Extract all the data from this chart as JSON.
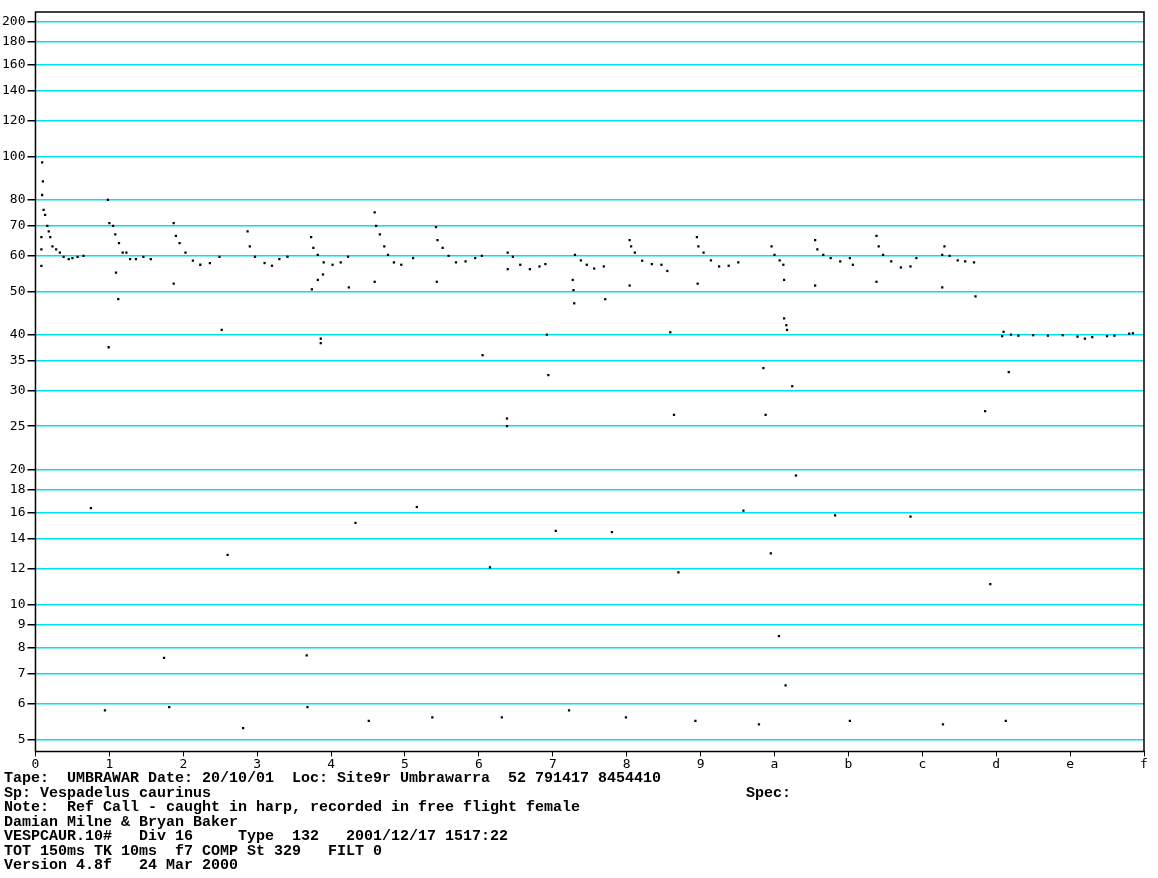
{
  "chart_data": {
    "type": "scatter",
    "color": "#000000",
    "marker": "square",
    "grid": "y",
    "legend": false,
    "log": "y",
    "xlim": [
      0,
      15
    ],
    "xticks": [
      {
        "value": 0,
        "label": "0"
      },
      {
        "value": 1,
        "label": "1"
      },
      {
        "value": 2,
        "label": "2"
      },
      {
        "value": 3,
        "label": "3"
      },
      {
        "value": 4,
        "label": "4"
      },
      {
        "value": 5,
        "label": "5"
      },
      {
        "value": 6,
        "label": "6"
      },
      {
        "value": 7,
        "label": "7"
      },
      {
        "value": 8,
        "label": "8"
      },
      {
        "value": 9,
        "label": "9"
      },
      {
        "value": 10,
        "label": "a"
      },
      {
        "value": 11,
        "label": "b"
      },
      {
        "value": 12,
        "label": "c"
      },
      {
        "value": 13,
        "label": "d"
      },
      {
        "value": 14,
        "label": "e"
      },
      {
        "value": 15,
        "label": "f"
      }
    ],
    "ylim": [
      4.7,
      210
    ],
    "yticks": [
      5,
      6,
      7,
      8,
      9,
      10,
      12,
      14,
      16,
      18,
      20,
      25,
      30,
      35,
      40,
      50,
      60,
      70,
      80,
      100,
      120,
      140,
      160,
      180,
      200
    ],
    "x": [
      0.08,
      0.08,
      0.08,
      0.09,
      0.1,
      0.09,
      0.11,
      0.13,
      0.16,
      0.18,
      0.2,
      0.23,
      0.28,
      0.33,
      0.38,
      0.45,
      0.5,
      0.57,
      0.65,
      0.98,
      1.0,
      1.05,
      1.08,
      1.13,
      1.18,
      1.23,
      1.28,
      1.36,
      1.46,
      1.56,
      1.09,
      1.12,
      0.99,
      1.87,
      1.9,
      1.95,
      2.03,
      2.13,
      2.23,
      2.36,
      2.49,
      1.87,
      2.52,
      2.87,
      2.9,
      2.97,
      3.1,
      3.2,
      3.3,
      3.41,
      3.73,
      3.76,
      3.82,
      3.9,
      4.02,
      4.13,
      4.23,
      3.74,
      3.82,
      3.89,
      3.86,
      3.86,
      4.24,
      4.59,
      4.61,
      4.66,
      4.72,
      4.77,
      4.85,
      4.95,
      5.11,
      4.59,
      5.42,
      5.44,
      5.51,
      5.59,
      5.69,
      5.82,
      5.95,
      6.04,
      5.43,
      6.05,
      6.39,
      6.46,
      6.56,
      6.69,
      6.82,
      6.9,
      6.39,
      6.92,
      6.38,
      6.38,
      7.3,
      7.38,
      7.46,
      7.56,
      7.69,
      7.27,
      7.28,
      7.29,
      7.71,
      6.94,
      8.04,
      8.06,
      8.11,
      8.21,
      8.34,
      8.47,
      8.55,
      8.04,
      8.59,
      8.95,
      8.97,
      9.04,
      9.14,
      9.25,
      9.38,
      9.51,
      8.96,
      9.96,
      10.0,
      10.07,
      10.12,
      10.13,
      10.13,
      10.16,
      10.17,
      10.55,
      10.58,
      10.66,
      10.76,
      10.89,
      11.02,
      11.06,
      10.55,
      11.38,
      11.41,
      11.47,
      11.58,
      11.71,
      11.84,
      11.92,
      11.38,
      12.3,
      12.27,
      12.37,
      12.48,
      12.58,
      12.7,
      12.27,
      12.72,
      13.08,
      13.1,
      13.2,
      13.3,
      13.5,
      13.7,
      13.9,
      14.1,
      14.2,
      14.3,
      14.5,
      14.6,
      14.8,
      14.85,
      0.75,
      0.94,
      1.81,
      1.74,
      2.6,
      2.81,
      3.67,
      3.68,
      4.33,
      4.51,
      5.16,
      5.37,
      6.15,
      6.31,
      7.04,
      7.22,
      7.8,
      7.99,
      8.7,
      8.64,
      8.93,
      9.58,
      9.79,
      9.85,
      9.88,
      9.95,
      10.24,
      10.29,
      10.06,
      10.15,
      11.02,
      10.82,
      11.84,
      12.28,
      12.85,
      12.92,
      13.13,
      13.17
    ],
    "values": [
      57,
      62,
      66,
      82,
      88,
      97,
      76,
      74,
      70,
      68,
      66,
      63,
      62,
      61,
      59.7,
      59,
      59.3,
      59.7,
      60,
      80,
      71,
      70,
      67,
      64,
      61,
      61,
      59,
      59,
      59.7,
      59,
      55,
      48,
      37.5,
      71,
      66.5,
      64,
      61,
      58.5,
      57.3,
      57.8,
      59.7,
      52,
      41,
      68,
      63,
      59.7,
      57.8,
      57,
      59,
      59.7,
      66,
      62.5,
      60.3,
      58,
      57.3,
      58,
      59.7,
      50.5,
      53,
      54.5,
      39.2,
      38.3,
      51,
      75,
      70,
      67,
      63,
      60.3,
      58,
      57.3,
      59.3,
      52.5,
      69.5,
      65,
      62.5,
      60,
      58,
      58.3,
      59.3,
      60,
      52.5,
      36,
      61,
      59.7,
      57.3,
      56,
      56.8,
      57.5,
      56,
      40,
      26,
      25,
      60.3,
      58.6,
      57.3,
      56.2,
      56.8,
      53,
      50.3,
      47,
      48,
      32.5,
      65,
      63,
      61,
      58.5,
      57.5,
      57.3,
      55.5,
      51.5,
      40.5,
      66,
      63,
      61,
      58.6,
      56.8,
      57,
      58,
      52,
      63,
      60.3,
      58.6,
      57.3,
      53,
      43.5,
      42,
      41,
      65,
      62,
      60.3,
      59.3,
      58.3,
      59.3,
      57.3,
      51.5,
      66.5,
      63,
      60.3,
      58.3,
      56.5,
      56.8,
      59.3,
      52.5,
      63,
      60.3,
      60,
      58.6,
      58.3,
      58,
      51,
      48.7,
      39.7,
      40.6,
      40,
      39.8,
      39.9,
      39.8,
      39.9,
      39.6,
      39.2,
      39.5,
      39.7,
      39.8,
      40.2,
      40.3,
      16.4,
      5.8,
      5.9,
      7.6,
      12.9,
      5.3,
      7.7,
      5.9,
      15.2,
      5.5,
      16.5,
      5.6,
      12.1,
      5.6,
      14.6,
      5.8,
      14.5,
      5.6,
      11.8,
      26.5,
      5.5,
      16.2,
      5.4,
      33.7,
      26.5,
      13,
      30.7,
      19.4,
      8.5,
      6.6,
      5.5,
      15.8,
      15.7,
      5.4,
      27,
      11.1,
      5.5,
      33
    ],
    "annotations": [
      "Tape:  UMBRAWAR Date: 20/10/01  Loc: Site9r Umbrawarra  52 791417 8454410",
      "Sp: Vespadelus caurinus",
      "Spec:",
      "Note:  Ref Call - caught in harp, recorded in free flight female",
      "Damian Milne & Bryan Baker",
      "VESPCAUR.10#   Div 16     Type  132   2001/12/17 1517:22",
      "TOT 150ms TK 10ms  f7 COMP St 329   FILT 0",
      "Version 4.8f   24 Mar 2000"
    ]
  }
}
